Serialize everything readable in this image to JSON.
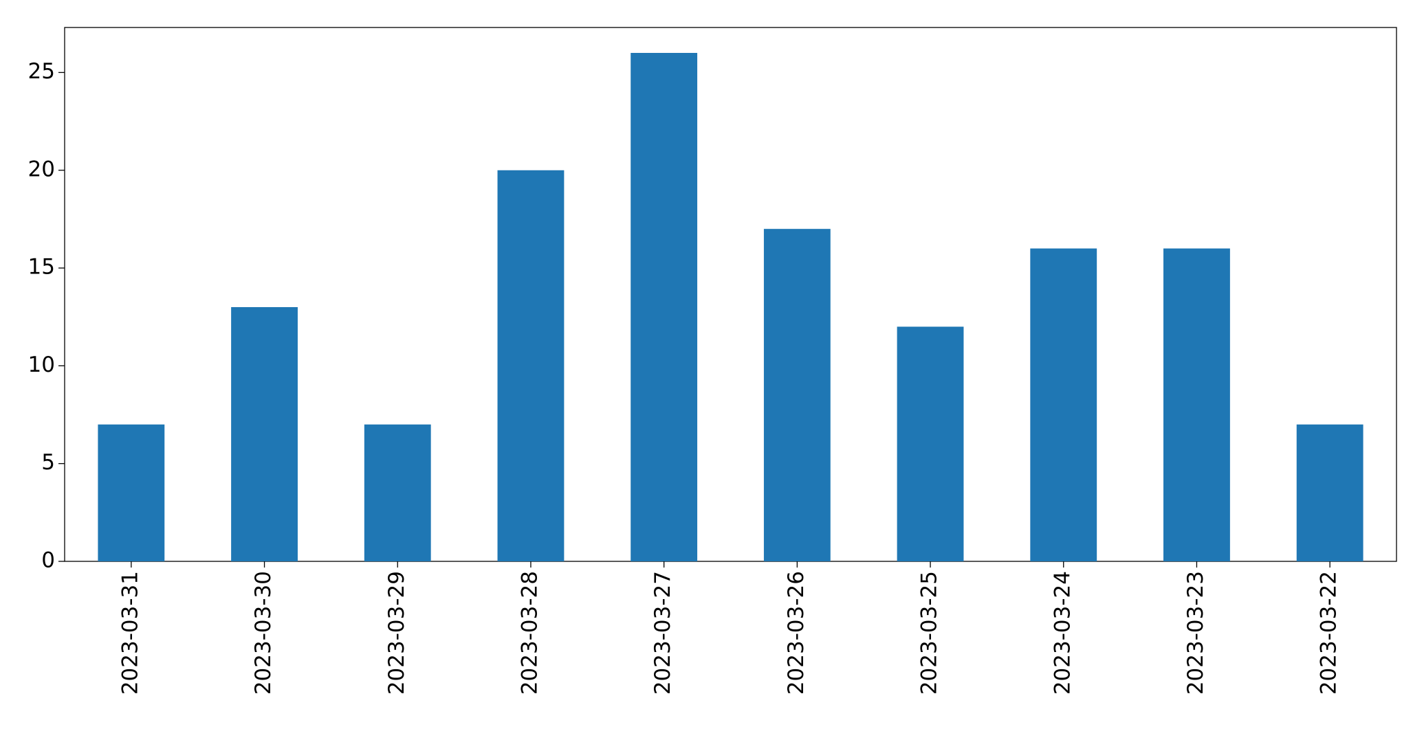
{
  "chart_data": {
    "type": "bar",
    "categories": [
      "2023-03-31",
      "2023-03-30",
      "2023-03-29",
      "2023-03-28",
      "2023-03-27",
      "2023-03-26",
      "2023-03-25",
      "2023-03-24",
      "2023-03-23",
      "2023-03-22"
    ],
    "values": [
      7,
      13,
      7,
      20,
      26,
      17,
      12,
      16,
      16,
      7
    ],
    "color": "#1f77b4",
    "ylim": [
      0,
      27.3
    ],
    "yticks": [
      0,
      5,
      10,
      15,
      20,
      25
    ],
    "grid": false
  }
}
